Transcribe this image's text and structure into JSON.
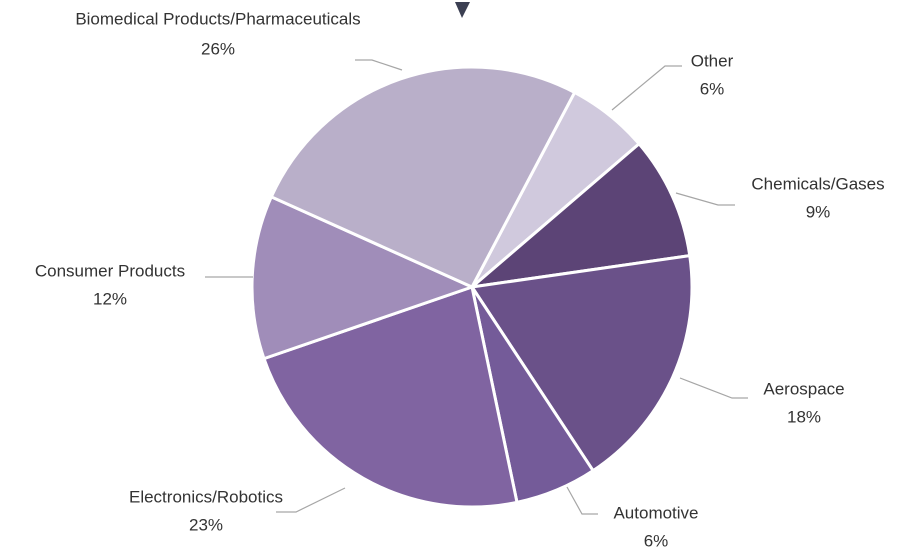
{
  "chart_data": {
    "type": "pie",
    "categories": [
      "Other",
      "Chemicals/Gases",
      "Aerospace",
      "Automotive",
      "Electronics/Robotics",
      "Consumer Products",
      "Biomedical Products/Pharmaceuticals"
    ],
    "values": [
      6,
      9,
      18,
      6,
      23,
      12,
      26
    ],
    "value_labels": [
      "6%",
      "9%",
      "18%",
      "6%",
      "23%",
      "12%",
      "26%"
    ],
    "colors": [
      "#d0c9dd",
      "#5c4476",
      "#6a5189",
      "#745b99",
      "#8064a1",
      "#a08db9",
      "#b9afc9"
    ]
  }
}
